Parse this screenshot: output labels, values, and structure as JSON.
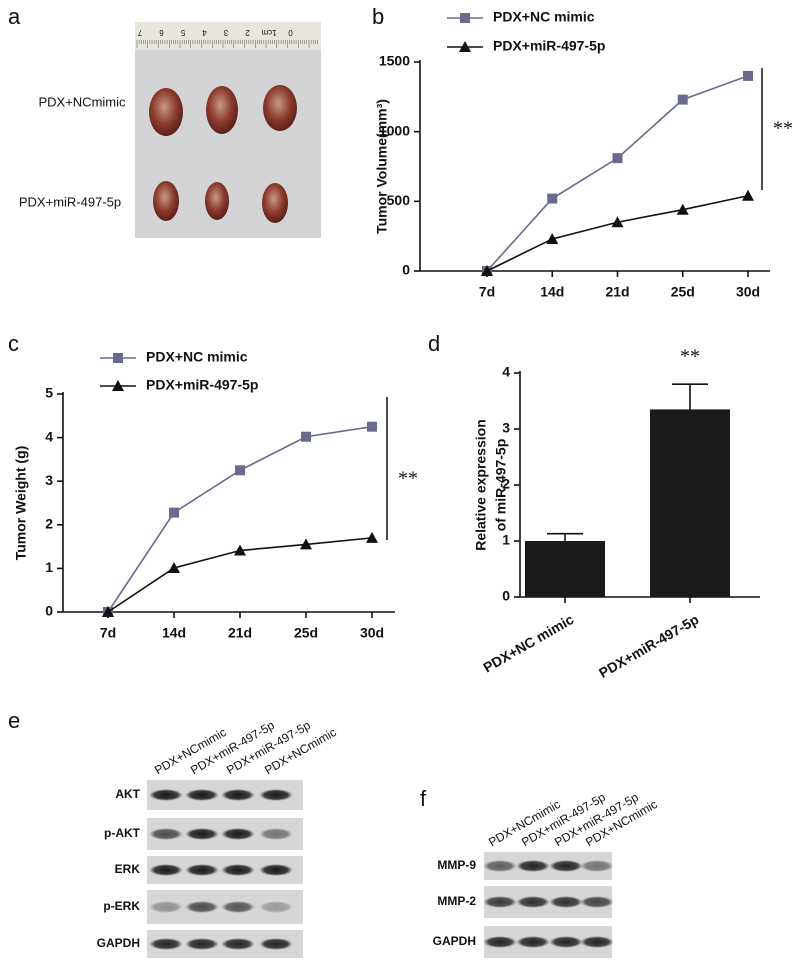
{
  "panel_labels": [
    "a",
    "e",
    "f"
  ],
  "photo": {
    "ruler": [
      "7",
      "6",
      "5",
      "4",
      "3",
      "2",
      "1cm",
      "0"
    ],
    "rows": [
      "PDX+NCmimic",
      "PDX+miR-497-5p"
    ]
  },
  "blot_e": {
    "lanes": [
      "PDX+NCmimic",
      "PDX+miR-497-5p",
      "PDX+miR-497-5p",
      "PDX+NCmimic"
    ],
    "rows": [
      "AKT",
      "p-AKT",
      "ERK",
      "p-ERK",
      "GAPDH"
    ]
  },
  "blot_f": {
    "lanes": [
      "PDX+NCmimic",
      "PDX+miR-497-5p",
      "PDX+miR-497-5p",
      "PDX+NCmimic"
    ],
    "rows": [
      "MMP-9",
      "MMP-2",
      "GAPDH"
    ]
  },
  "chart_data": [
    {
      "type": "line",
      "panel_label": "b",
      "y_label": "Tumor Volume(mm³)",
      "categories": [
        "7d",
        "14d",
        "21d",
        "25d",
        "30d"
      ],
      "series": [
        {
          "name": "PDX+NC mimic",
          "color": "#6a6a8e",
          "marker": "square",
          "values": [
            0,
            520,
            810,
            1230,
            1400
          ]
        },
        {
          "name": "PDX+miR-497-5p",
          "color": "#111111",
          "marker": "triangle",
          "values": [
            0,
            230,
            350,
            440,
            540
          ]
        }
      ],
      "ylim": [
        0,
        1500
      ],
      "yticks": [
        0,
        500,
        1000,
        1500
      ],
      "annotation": "**"
    },
    {
      "type": "line",
      "panel_label": "c",
      "y_label": "Tumor Weight (g)",
      "categories": [
        "7d",
        "14d",
        "21d",
        "25d",
        "30d"
      ],
      "series": [
        {
          "name": "PDX+NC mimic",
          "color": "#6a6a8e",
          "marker": "square",
          "values": [
            0,
            2.28,
            3.25,
            4.02,
            4.25
          ]
        },
        {
          "name": "PDX+miR-497-5p",
          "color": "#111111",
          "marker": "triangle",
          "values": [
            0,
            1.01,
            1.41,
            1.55,
            1.7
          ]
        }
      ],
      "ylim": [
        0,
        5
      ],
      "yticks": [
        0,
        1,
        2,
        3,
        4,
        5
      ],
      "annotation": "**"
    },
    {
      "type": "bar",
      "panel_label": "d",
      "y_label": [
        "Relative expression",
        "of miR-497-5p"
      ],
      "categories": [
        "PDX+NC mimic",
        "PDX+miR-497-5p"
      ],
      "values": [
        1.0,
        3.35
      ],
      "errors": [
        0.13,
        0.45
      ],
      "color": "#1a1a1a",
      "ylim": [
        0,
        4
      ],
      "yticks": [
        0,
        1,
        2,
        3,
        4
      ],
      "annotation": "**"
    }
  ]
}
